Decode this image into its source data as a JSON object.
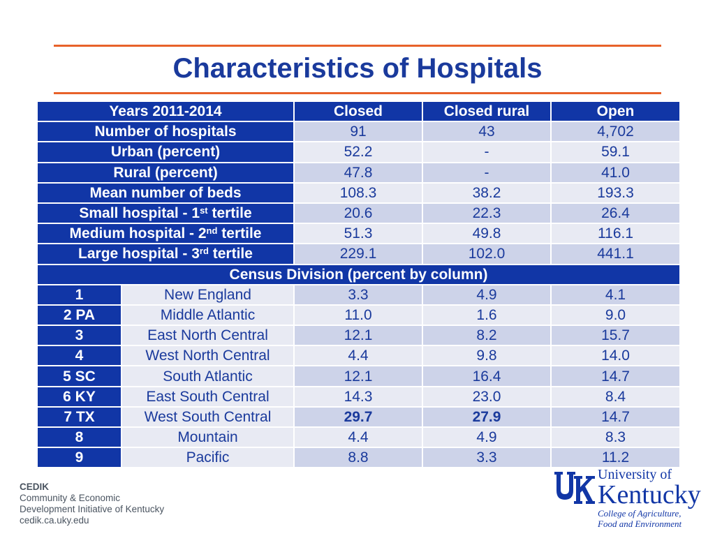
{
  "title": "Characteristics of Hospitals",
  "table": {
    "header": [
      "Years 2011-2014",
      "Closed",
      "Closed rural",
      "Open"
    ],
    "rows": [
      {
        "label": "Number of hospitals",
        "closed": "91",
        "closed_rural": "43",
        "open": "4,702"
      },
      {
        "label": "Urban (percent)",
        "closed": "52.2",
        "closed_rural": "-",
        "open": "59.1"
      },
      {
        "label": "Rural (percent)",
        "closed": "47.8",
        "closed_rural": "-",
        "open": "41.0"
      },
      {
        "label": "Mean number of beds",
        "closed": "108.3",
        "closed_rural": "38.2",
        "open": "193.3"
      },
      {
        "label_pre": "Small hospital - 1",
        "label_sup": "st",
        "label_post": " tertile",
        "closed": "20.6",
        "closed_rural": "22.3",
        "open": "26.4"
      },
      {
        "label_pre": "Medium hospital - 2",
        "label_sup": "nd",
        "label_post": " tertile",
        "closed": "51.3",
        "closed_rural": "49.8",
        "open": "116.1"
      },
      {
        "label_pre": "Large hospital - 3",
        "label_sup": "rd",
        "label_post": " tertile",
        "closed": "229.1",
        "closed_rural": "102.0",
        "open": "441.1"
      }
    ],
    "census_header": "Census Division (percent by column)",
    "census": [
      {
        "code": "1",
        "name": "New England",
        "closed": "3.3",
        "closed_rural": "4.9",
        "open": "4.1"
      },
      {
        "code": "2 PA",
        "name": "Middle Atlantic",
        "closed": "11.0",
        "closed_rural": "1.6",
        "open": "9.0"
      },
      {
        "code": "3",
        "name": "East North Central",
        "closed": "12.1",
        "closed_rural": "8.2",
        "open": "15.7"
      },
      {
        "code": "4",
        "name": "West North Central",
        "closed": "4.4",
        "closed_rural": "9.8",
        "open": "14.0"
      },
      {
        "code": "5 SC",
        "name": "South Atlantic",
        "closed": "12.1",
        "closed_rural": "16.4",
        "open": "14.7"
      },
      {
        "code": "6 KY",
        "name": "East South Central",
        "closed": "14.3",
        "closed_rural": "23.0",
        "open": "8.4"
      },
      {
        "code": "7 TX",
        "name": "West South Central",
        "closed": "29.7",
        "closed_rural": "27.9",
        "open": "14.7"
      },
      {
        "code": "8",
        "name": "Mountain",
        "closed": "4.4",
        "closed_rural": "4.9",
        "open": "8.3"
      },
      {
        "code": "9",
        "name": "Pacific",
        "closed": "8.8",
        "closed_rural": "3.3",
        "open": "11.2"
      }
    ]
  },
  "footer": {
    "cedik_lines": [
      "CEDIK",
      "Community & Economic",
      "Development Initiative of Kentucky",
      "cedik.ca.uky.edu"
    ],
    "uk_logo": {
      "monogram": "UK",
      "university_of": "University of",
      "kentucky": "Kentucky",
      "college_lines": [
        "College of Agriculture,",
        "Food and Environment"
      ]
    }
  },
  "colors": {
    "accent_rule": "#e8622a",
    "brand_blue": "#1136a6",
    "row_shade": "#cdd3e9",
    "row_light": "#e8eaf3"
  }
}
